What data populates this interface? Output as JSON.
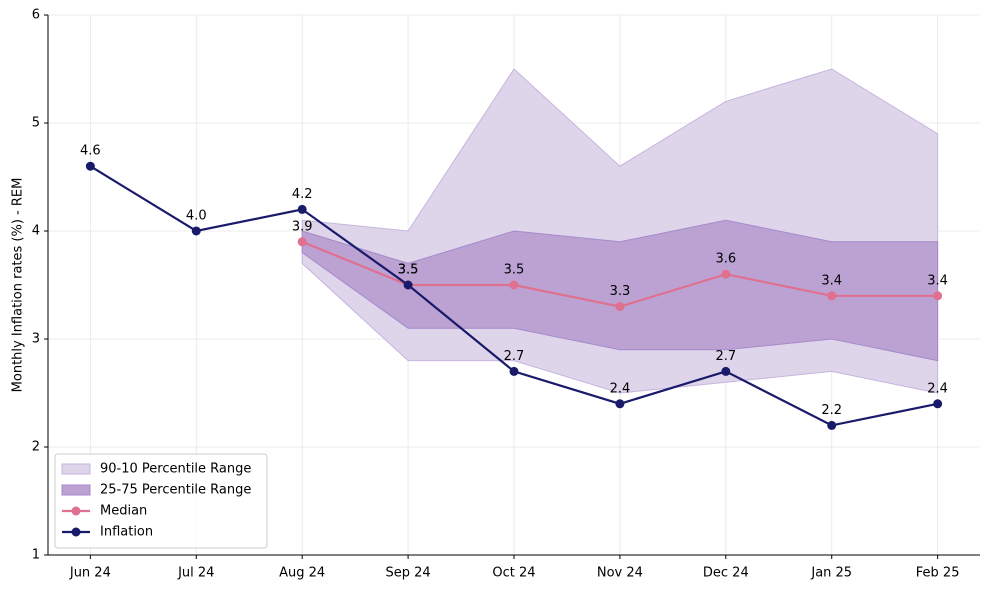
{
  "chart_data": {
    "type": "line",
    "ylabel": "Monthly Inflation rates (%) - REM",
    "categories": [
      "Jun 24",
      "Jul 24",
      "Aug 24",
      "Sep 24",
      "Oct 24",
      "Nov 24",
      "Dec 24",
      "Jan 25",
      "Feb 25"
    ],
    "bands": [
      {
        "name": "90-10 Percentile Range",
        "color": "#dfd5ea",
        "edge": "#c6b4de",
        "upper": [
          null,
          null,
          4.1,
          4.0,
          5.5,
          4.6,
          5.2,
          5.5,
          4.9
        ],
        "lower": [
          null,
          null,
          3.7,
          2.8,
          2.8,
          2.5,
          2.6,
          2.7,
          2.5
        ]
      },
      {
        "name": "25-75 Percentile Range",
        "color": "#bba2d3",
        "edge": "#a58acb",
        "upper": [
          null,
          null,
          4.0,
          3.7,
          4.0,
          3.9,
          4.1,
          3.9,
          3.9
        ],
        "lower": [
          null,
          null,
          3.8,
          3.1,
          3.1,
          2.9,
          2.9,
          3.0,
          2.8
        ]
      }
    ],
    "series": [
      {
        "name": "Median",
        "color": "#e07090",
        "values": [
          null,
          null,
          3.9,
          3.5,
          3.5,
          3.3,
          3.6,
          3.4,
          3.4
        ],
        "value_labels": [
          null,
          null,
          "3.9",
          "3.5",
          "3.5",
          "3.3",
          "3.6",
          "3.4",
          "3.4"
        ]
      },
      {
        "name": "Inflation",
        "color": "#1a1a6b",
        "values": [
          4.6,
          4.0,
          4.2,
          3.5,
          2.7,
          2.4,
          2.7,
          2.2,
          2.4
        ],
        "value_labels": [
          "4.6",
          "4.0",
          "4.2",
          "3.5",
          "2.7",
          "2.4",
          "2.7",
          "2.2",
          "2.4"
        ]
      }
    ],
    "ylim": [
      1,
      6
    ],
    "yticks": [
      1,
      2,
      3,
      4,
      5,
      6
    ],
    "grid": true,
    "legend": "lower left"
  }
}
